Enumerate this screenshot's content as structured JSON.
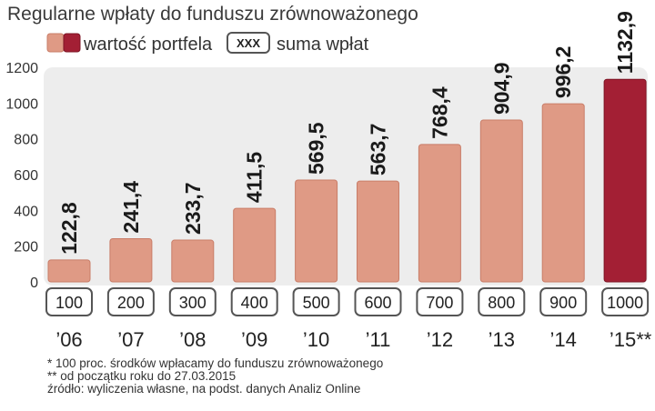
{
  "title": "Regularne wpłaty do funduszu zrównoważonego",
  "legend": {
    "portfolio_label": "wartość portfela",
    "sum_box_text": "XXX",
    "sum_label": "suma wpłat"
  },
  "colors": {
    "bar": "#df9a85",
    "bar_stroke": "#c97d68",
    "highlight_bar": "#a31f34",
    "highlight_stroke": "#7d1424",
    "panel": "#ededed",
    "box_border": "#555555"
  },
  "chart_data": {
    "type": "bar",
    "title": "Regularne wpłaty do funduszu zrównoważonego",
    "categories": [
      "’06",
      "’07",
      "’08",
      "’09",
      "’10",
      "’11",
      "’12",
      "’13",
      "’14",
      "’15**"
    ],
    "series": [
      {
        "name": "wartość portfela",
        "values": [
          122.8,
          241.4,
          233.7,
          411.5,
          569.5,
          563.7,
          768.4,
          904.9,
          996.2,
          1132.9
        ],
        "labels": [
          "122,8",
          "241,4",
          "233,7",
          "411,5",
          "569,5",
          "563,7",
          "768,4",
          "904,9",
          "996,2",
          "1132,9"
        ]
      },
      {
        "name": "suma wpłat",
        "values": [
          100,
          200,
          300,
          400,
          500,
          600,
          700,
          800,
          900,
          1000
        ],
        "labels": [
          "100",
          "200",
          "300",
          "400",
          "500",
          "600",
          "700",
          "800",
          "900",
          "1000"
        ]
      }
    ],
    "highlight_index": 9,
    "yticks": [
      "0",
      "200",
      "400",
      "600",
      "800",
      "1000",
      "1200"
    ],
    "ylim": [
      0,
      1200
    ],
    "grid": false,
    "legend_position": "top-left"
  },
  "footnotes": [
    "* 100 proc. środków wpłacamy do funduszu zrównoważonego",
    "** od początku roku do 27.03.2015",
    "źródło: wyliczenia własne, na podst. danych Analiz Online"
  ]
}
